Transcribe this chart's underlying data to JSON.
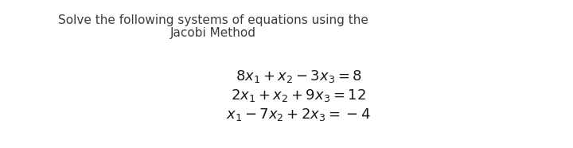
{
  "background_color": "#ffffff",
  "title_line1": "Solve the following systems of equations using the",
  "title_line2": "Jacobi Method",
  "title_fontsize": 11.0,
  "title_fontweight": "normal",
  "title_color": "#3d3d3d",
  "eq1": "$8x_1 + x_2 - 3x_3 = 8$",
  "eq2": "$2x_1 + x_2 + 9x_3 = 12$",
  "eq3": "$x_1 - 7x_2 + 2x_3 = -4$",
  "eq_fontsize": 13.0,
  "eq_color": "#1a1a1a"
}
